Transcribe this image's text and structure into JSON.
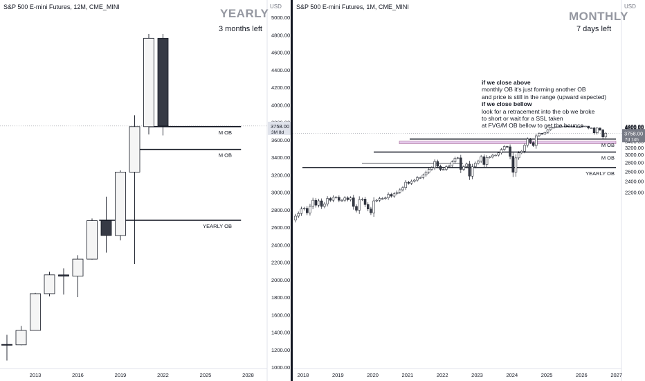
{
  "left_pane": {
    "title": "S&P 500 E-mini Futures, 12M, CME_MINI",
    "big_label": "YEARLY",
    "sub_label": "3 months left",
    "price_scale_unit": "USD",
    "price_tag": {
      "price": "3758.00",
      "countdown": "3M 8d"
    }
  },
  "right_pane": {
    "title": "S&P 500 E-mini Futures, 1M, CME_MINI",
    "big_label": "MONTHLY",
    "sub_label": "7 days left",
    "price_scale_unit": "USD",
    "price_tag": {
      "price": "3758.00",
      "countdown": "7d 14h"
    },
    "note": {
      "heading1": "if we close above",
      "line1": "monthly OB it's just forming another OB",
      "line2": "and price is still in the range (upward expected)",
      "heading2": "if we close bellow",
      "line3": "look for a retracement into the ob we broke",
      "line4": "to short or wait for a SSL taken",
      "line5": "at FVG/M OB bellow to get the bounce"
    }
  },
  "chart_data": [
    {
      "type": "candlestick",
      "title": "S&P 500 E-mini Futures, 12M, CME_MINI",
      "timeframe": "12M",
      "colors": {
        "up_fill": "#f5f5f5",
        "down_fill": "#363a45",
        "outline": "#131722",
        "wick": "#131722"
      },
      "ylim": [
        1000,
        5000
      ],
      "y_ticks": [
        1000,
        1200,
        1400,
        1600,
        1800,
        2000,
        2200,
        2400,
        2600,
        2800,
        3000,
        3200,
        3400,
        3600,
        3800,
        4000,
        4200,
        4400,
        4600,
        4800,
        5000
      ],
      "x_ticks": [
        2013,
        2016,
        2019,
        2022,
        2025,
        2028
      ],
      "candles": [
        {
          "year": 2010,
          "open": 1250,
          "high": 1270,
          "low": 1010,
          "close": 1255
        },
        {
          "year": 2011,
          "open": 1260,
          "high": 1370,
          "low": 1075,
          "close": 1255
        },
        {
          "year": 2012,
          "open": 1255,
          "high": 1470,
          "low": 1250,
          "close": 1420
        },
        {
          "year": 2013,
          "open": 1420,
          "high": 1850,
          "low": 1420,
          "close": 1840
        },
        {
          "year": 2014,
          "open": 1840,
          "high": 2090,
          "low": 1810,
          "close": 2055
        },
        {
          "year": 2015,
          "open": 2055,
          "high": 2130,
          "low": 1830,
          "close": 2040
        },
        {
          "year": 2016,
          "open": 2040,
          "high": 2280,
          "low": 1800,
          "close": 2235
        },
        {
          "year": 2017,
          "open": 2235,
          "high": 2700,
          "low": 2230,
          "close": 2675
        },
        {
          "year": 2018,
          "open": 2675,
          "high": 2950,
          "low": 2310,
          "close": 2505
        },
        {
          "year": 2019,
          "open": 2505,
          "high": 3250,
          "low": 2450,
          "close": 3230
        },
        {
          "year": 2020,
          "open": 3230,
          "high": 3880,
          "low": 2180,
          "close": 3750
        },
        {
          "year": 2021,
          "open": 3750,
          "high": 4810,
          "low": 3660,
          "close": 4760
        },
        {
          "year": 2022,
          "open": 4760,
          "high": 4810,
          "low": 3650,
          "close": 3758
        }
      ],
      "levels": [
        {
          "label": "M OB",
          "price": 3750,
          "from_year": 2021,
          "to_year": 2027.5
        },
        {
          "label": "M OB",
          "price": 3490,
          "from_year": 2020.1,
          "to_year": 2027.5
        },
        {
          "label": "YEARLY OB",
          "price": 2680,
          "from_year": 2017.5,
          "to_year": 2027.5
        }
      ]
    },
    {
      "type": "candlestick",
      "title": "S&P 500 E-mini Futures, 1M, CME_MINI",
      "timeframe": "1M",
      "colors": {
        "up_fill": "#f5f5f5",
        "down_fill": "#363a45",
        "outline": "#131722",
        "wick": "#131722"
      },
      "ylim": [
        1950,
        5000
      ],
      "y_ticks": [
        2200,
        2400,
        2600,
        2800,
        3000,
        3200,
        3400,
        3600,
        3800,
        4000,
        4200,
        4400,
        4600,
        4800
      ],
      "x_ticks": [
        2018,
        2019,
        2020,
        2021,
        2022,
        2023,
        2024,
        2025,
        2026,
        2027
      ],
      "closes": [
        1810,
        1850,
        1920,
        1930,
        1860,
        1960,
        2060,
        1980,
        2050,
        1960,
        2000,
        2090,
        2060,
        2110,
        2110,
        2060,
        2060,
        2100,
        2070,
        2100,
        1960,
        1900,
        2070,
        2080,
        1990,
        1920,
        1860,
        2050,
        2060,
        2090,
        2090,
        2100,
        2160,
        2130,
        2170,
        2200,
        2240,
        2280,
        2380,
        2360,
        2400,
        2420,
        2470,
        2470,
        2520,
        2580,
        2640,
        2680,
        2820,
        2710,
        2640,
        2640,
        2700,
        2720,
        2810,
        2900,
        2910,
        2640,
        2700,
        2760,
        2500,
        2700,
        2780,
        2830,
        2940,
        2750,
        2920,
        2930,
        2980,
        2980,
        3040,
        3140,
        3230,
        3220,
        2950,
        2580,
        2910,
        3040,
        3090,
        3270,
        3490,
        3360,
        3260,
        3630,
        3750,
        3710,
        3800,
        3970,
        4170,
        4190,
        4290,
        4290,
        4390,
        4520,
        4300,
        4600,
        4560,
        4760,
        4500,
        4360,
        4530,
        4120,
        4130,
        3780,
        4120,
        3950,
        3580,
        3758
      ],
      "months_start": "2017-01",
      "levels": [
        {
          "label": "M OB",
          "price": 3490
        },
        {
          "label": "M OB",
          "price": 3065
        },
        {
          "label": "YEARLY OB",
          "price": 2680
        }
      ],
      "fvg_zone": {
        "low": 3320,
        "high": 3410
      }
    }
  ]
}
